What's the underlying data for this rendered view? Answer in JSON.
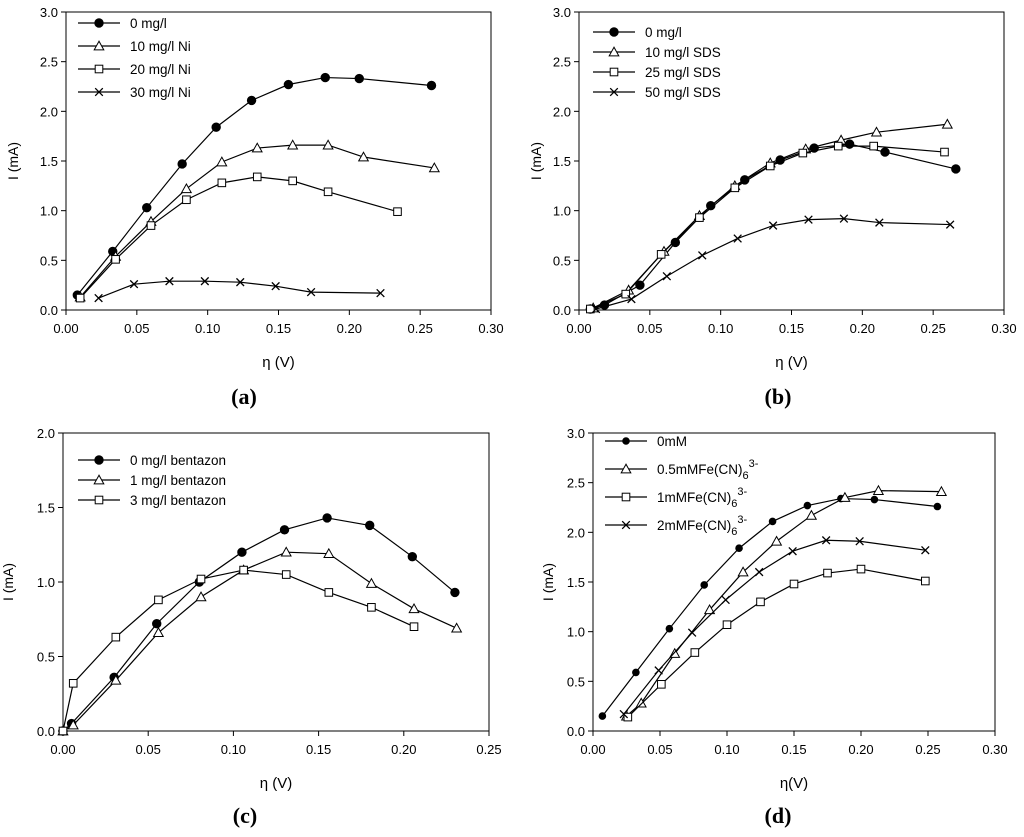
{
  "chart_data": [
    {
      "type": "line",
      "panel_label": "(a)",
      "xlabel": "η (V)",
      "ylabel": "I (mA)",
      "xlim": [
        0,
        0.3
      ],
      "ylim": [
        0,
        3
      ],
      "xticks": [
        "0.00",
        "0.05",
        "0.10",
        "0.15",
        "0.20",
        "0.25",
        "0.30"
      ],
      "yticks": [
        "0.0",
        "0.5",
        "1.0",
        "1.5",
        "2.0",
        "2.5",
        "3.0"
      ],
      "grid": false,
      "legend_position": "top-left",
      "series": [
        {
          "name": "0 mg/l",
          "marker": "filled-circle",
          "x": [
            0.008,
            0.033,
            0.057,
            0.082,
            0.106,
            0.131,
            0.157,
            0.183,
            0.207,
            0.258
          ],
          "y": [
            0.15,
            0.59,
            1.03,
            1.47,
            1.84,
            2.11,
            2.27,
            2.34,
            2.33,
            2.26
          ]
        },
        {
          "name": "10 mg/l Ni",
          "marker": "triangle",
          "x": [
            0.01,
            0.035,
            0.06,
            0.085,
            0.11,
            0.135,
            0.16,
            0.185,
            0.21,
            0.26
          ],
          "y": [
            0.13,
            0.54,
            0.89,
            1.22,
            1.49,
            1.63,
            1.66,
            1.66,
            1.54,
            1.43
          ]
        },
        {
          "name": "20 mg/l Ni",
          "marker": "square",
          "x": [
            0.01,
            0.035,
            0.06,
            0.085,
            0.11,
            0.135,
            0.16,
            0.185,
            0.234
          ],
          "y": [
            0.12,
            0.51,
            0.85,
            1.11,
            1.28,
            1.34,
            1.3,
            1.19,
            0.99
          ]
        },
        {
          "name": "30 mg/l Ni",
          "marker": "x",
          "x": [
            0.023,
            0.048,
            0.073,
            0.098,
            0.123,
            0.148,
            0.173,
            0.222
          ],
          "y": [
            0.12,
            0.26,
            0.29,
            0.29,
            0.28,
            0.24,
            0.18,
            0.17
          ]
        }
      ]
    },
    {
      "type": "line",
      "panel_label": "(b)",
      "xlabel": "η (V)",
      "ylabel": "I (mA)",
      "xlim": [
        0,
        0.3
      ],
      "ylim": [
        0,
        3
      ],
      "xticks": [
        "0.00",
        "0.05",
        "0.10",
        "0.15",
        "0.20",
        "0.25",
        "0.30"
      ],
      "yticks": [
        "0.0",
        "0.5",
        "1.0",
        "1.5",
        "2.0",
        "2.5",
        "3.0"
      ],
      "grid": false,
      "legend_position": "top-left",
      "series": [
        {
          "name": "0 mg/l",
          "marker": "filled-circle",
          "x": [
            0.008,
            0.018,
            0.043,
            0.068,
            0.093,
            0.117,
            0.142,
            0.166,
            0.191,
            0.216,
            0.266
          ],
          "y": [
            0.01,
            0.05,
            0.25,
            0.68,
            1.05,
            1.31,
            1.51,
            1.63,
            1.67,
            1.59,
            1.42
          ]
        },
        {
          "name": "10 mg/l SDS",
          "marker": "triangle",
          "x": [
            0.01,
            0.035,
            0.06,
            0.085,
            0.11,
            0.135,
            0.16,
            0.185,
            0.21,
            0.26
          ],
          "y": [
            0.02,
            0.2,
            0.59,
            0.95,
            1.25,
            1.48,
            1.62,
            1.71,
            1.79,
            1.87
          ]
        },
        {
          "name": "25 mg/l SDS",
          "marker": "square",
          "x": [
            0.008,
            0.033,
            0.058,
            0.085,
            0.11,
            0.135,
            0.158,
            0.183,
            0.208,
            0.258
          ],
          "y": [
            0.01,
            0.16,
            0.56,
            0.93,
            1.23,
            1.45,
            1.58,
            1.65,
            1.65,
            1.59
          ]
        },
        {
          "name": "50 mg/l SDS",
          "marker": "x",
          "x": [
            0.012,
            0.037,
            0.062,
            0.087,
            0.112,
            0.137,
            0.162,
            0.187,
            0.212,
            0.262
          ],
          "y": [
            0.01,
            0.11,
            0.34,
            0.55,
            0.72,
            0.85,
            0.91,
            0.92,
            0.88,
            0.86
          ]
        }
      ]
    },
    {
      "type": "line",
      "panel_label": "(c)",
      "xlabel": "η (V)",
      "ylabel": "I (mA)",
      "xlim": [
        0,
        0.25
      ],
      "ylim": [
        0,
        2
      ],
      "xticks": [
        "0.00",
        "0.05",
        "0.10",
        "0.15",
        "0.20",
        "0.25"
      ],
      "yticks": [
        "0.0",
        "0.5",
        "1.0",
        "1.5",
        "2.0"
      ],
      "grid": false,
      "legend_position": "top-left",
      "series": [
        {
          "name": "0 mg/l bentazon",
          "marker": "filled-circle",
          "x": [
            0.0,
            0.005,
            0.03,
            0.055,
            0.08,
            0.105,
            0.13,
            0.155,
            0.18,
            0.205,
            0.23
          ],
          "y": [
            0.0,
            0.05,
            0.36,
            0.72,
            1.0,
            1.2,
            1.35,
            1.43,
            1.38,
            1.17,
            0.93
          ]
        },
        {
          "name": "1 mg/l bentazon",
          "marker": "triangle",
          "x": [
            0.0,
            0.006,
            0.031,
            0.056,
            0.081,
            0.106,
            0.131,
            0.156,
            0.181,
            0.206,
            0.231
          ],
          "y": [
            0.0,
            0.04,
            0.34,
            0.66,
            0.9,
            1.08,
            1.2,
            1.19,
            0.99,
            0.82,
            0.69
          ]
        },
        {
          "name": "3 mg/l bentazon",
          "marker": "square",
          "x": [
            0.0,
            0.006,
            0.031,
            0.056,
            0.081,
            0.106,
            0.131,
            0.156,
            0.181,
            0.206
          ],
          "y": [
            0.0,
            0.32,
            0.63,
            0.88,
            1.02,
            1.08,
            1.05,
            0.93,
            0.83,
            0.7
          ]
        }
      ]
    },
    {
      "type": "line",
      "panel_label": "(d)",
      "xlabel": "η(V)",
      "ylabel": "I (mA)",
      "xlim": [
        0,
        0.3
      ],
      "ylim": [
        0,
        3
      ],
      "xticks": [
        "0.00",
        "0.05",
        "0.10",
        "0.15",
        "0.20",
        "0.25",
        "0.30"
      ],
      "yticks": [
        "0.0",
        "0.5",
        "1.0",
        "1.5",
        "2.0",
        "2.5",
        "3.0"
      ],
      "grid": false,
      "legend_position": "top-left",
      "series": [
        {
          "name": "0mM",
          "marker": "small-filled-circle",
          "x": [
            0.007,
            0.032,
            0.057,
            0.083,
            0.109,
            0.134,
            0.16,
            0.185,
            0.21,
            0.257
          ],
          "y": [
            0.15,
            0.59,
            1.03,
            1.47,
            1.84,
            2.11,
            2.27,
            2.34,
            2.33,
            2.26
          ]
        },
        {
          "name": "0.5mMFe(CN)63-",
          "marker": "triangle",
          "x": [
            0.025,
            0.036,
            0.061,
            0.087,
            0.112,
            0.137,
            0.163,
            0.188,
            0.213,
            0.26
          ],
          "y": [
            0.15,
            0.28,
            0.78,
            1.22,
            1.6,
            1.91,
            2.17,
            2.35,
            2.42,
            2.41
          ]
        },
        {
          "name": "1mMFe(CN)63-",
          "marker": "square",
          "x": [
            0.026,
            0.051,
            0.076,
            0.1,
            0.125,
            0.15,
            0.175,
            0.2,
            0.248
          ],
          "y": [
            0.14,
            0.47,
            0.79,
            1.07,
            1.3,
            1.48,
            1.59,
            1.63,
            1.51
          ]
        },
        {
          "name": "2mMFe(CN)63-",
          "marker": "x",
          "x": [
            0.023,
            0.049,
            0.074,
            0.099,
            0.124,
            0.149,
            0.174,
            0.199,
            0.248
          ],
          "y": [
            0.17,
            0.61,
            0.99,
            1.32,
            1.6,
            1.81,
            1.92,
            1.91,
            1.82
          ]
        }
      ]
    }
  ]
}
